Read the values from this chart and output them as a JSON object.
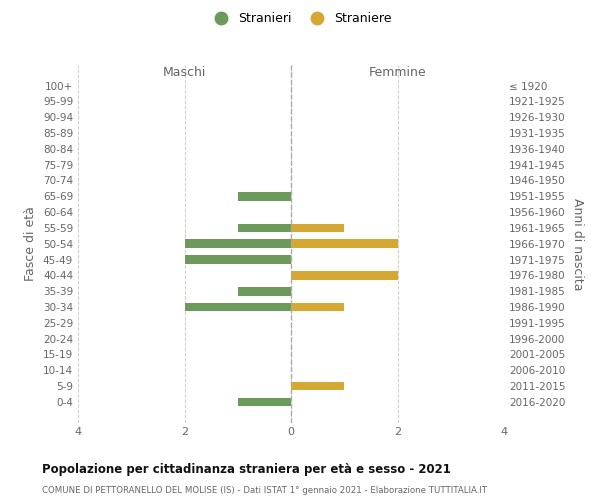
{
  "age_groups": [
    "100+",
    "95-99",
    "90-94",
    "85-89",
    "80-84",
    "75-79",
    "70-74",
    "65-69",
    "60-64",
    "55-59",
    "50-54",
    "45-49",
    "40-44",
    "35-39",
    "30-34",
    "25-29",
    "20-24",
    "15-19",
    "10-14",
    "5-9",
    "0-4"
  ],
  "birth_years": [
    "≤ 1920",
    "1921-1925",
    "1926-1930",
    "1931-1935",
    "1936-1940",
    "1941-1945",
    "1946-1950",
    "1951-1955",
    "1956-1960",
    "1961-1965",
    "1966-1970",
    "1971-1975",
    "1976-1980",
    "1981-1985",
    "1986-1990",
    "1991-1995",
    "1996-2000",
    "2001-2005",
    "2006-2010",
    "2011-2015",
    "2016-2020"
  ],
  "stranieri": [
    0,
    0,
    0,
    0,
    0,
    0,
    0,
    -1,
    0,
    -1,
    -2,
    -2,
    0,
    -1,
    -2,
    0,
    0,
    0,
    0,
    0,
    -1
  ],
  "straniere": [
    0,
    0,
    0,
    0,
    0,
    0,
    0,
    0,
    0,
    1,
    2,
    0,
    2,
    0,
    1,
    0,
    0,
    0,
    0,
    1,
    0
  ],
  "color_stranieri": "#6b9a5b",
  "color_straniere": "#d4a832",
  "title": "Popolazione per cittadinanza straniera per età e sesso - 2021",
  "subtitle": "COMUNE DI PETTORANELLO DEL MOLISE (IS) - Dati ISTAT 1° gennaio 2021 - Elaborazione TUTTITALIA.IT",
  "ylabel_left": "Fasce di età",
  "ylabel_right": "Anni di nascita",
  "xlabel_maschi": "Maschi",
  "xlabel_femmine": "Femmine",
  "legend_stranieri": "Stranieri",
  "legend_straniere": "Straniere",
  "xlim": [
    -4,
    4
  ],
  "background_color": "#ffffff",
  "grid_color": "#cccccc",
  "tick_color": "#999999",
  "label_color": "#666666"
}
